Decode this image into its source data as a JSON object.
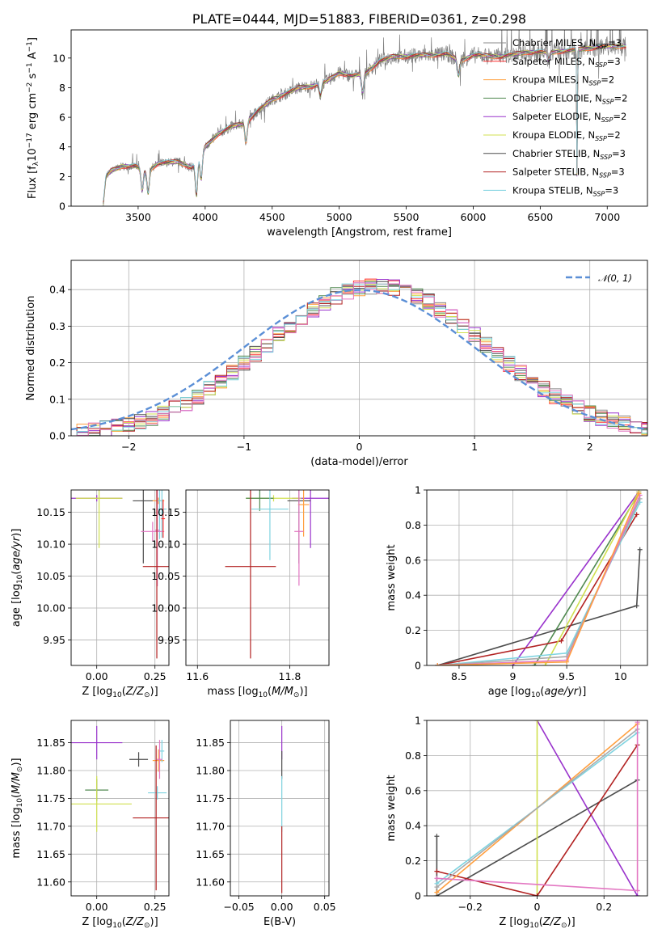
{
  "chart_data": [
    {
      "id": "spectrum",
      "type": "line",
      "title": "PLATE=0444, MJD=51883, FIBERID=0361, z=0.298",
      "xlabel": "wavelength [Angstrom, rest frame]",
      "ylabel": "Flux [f_λ10^-17 erg cm^-2 s^-1 A^-1]",
      "xlim": [
        3000,
        7300
      ],
      "ylim": [
        0,
        11.9
      ],
      "xticks": [
        3500,
        4000,
        4500,
        5000,
        5500,
        6000,
        6500,
        7000
      ],
      "yticks": [
        0,
        2,
        4,
        6,
        8,
        10
      ],
      "grid": false,
      "legend_position": "top-right",
      "data_start": 3240,
      "data_end": 7140,
      "continuum": [
        {
          "x": 3240,
          "y": 0.2
        },
        {
          "x": 3260,
          "y": 2.0
        },
        {
          "x": 3300,
          "y": 2.4
        },
        {
          "x": 3380,
          "y": 2.7
        },
        {
          "x": 3480,
          "y": 2.7
        },
        {
          "x": 3560,
          "y": 2.3
        },
        {
          "x": 3650,
          "y": 2.9
        },
        {
          "x": 3800,
          "y": 3.0
        },
        {
          "x": 3900,
          "y": 2.6
        },
        {
          "x": 4000,
          "y": 4.0
        },
        {
          "x": 4100,
          "y": 4.9
        },
        {
          "x": 4200,
          "y": 5.4
        },
        {
          "x": 4300,
          "y": 5.6
        },
        {
          "x": 4400,
          "y": 6.5
        },
        {
          "x": 4500,
          "y": 7.2
        },
        {
          "x": 4600,
          "y": 7.6
        },
        {
          "x": 4700,
          "y": 8.0
        },
        {
          "x": 4800,
          "y": 8.1
        },
        {
          "x": 4900,
          "y": 8.4
        },
        {
          "x": 5000,
          "y": 9.0
        },
        {
          "x": 5100,
          "y": 8.8
        },
        {
          "x": 5200,
          "y": 9.0
        },
        {
          "x": 5300,
          "y": 9.8
        },
        {
          "x": 5400,
          "y": 10.1
        },
        {
          "x": 5500,
          "y": 10.1
        },
        {
          "x": 5600,
          "y": 10.2
        },
        {
          "x": 5700,
          "y": 10.2
        },
        {
          "x": 5800,
          "y": 10.3
        },
        {
          "x": 5900,
          "y": 9.8
        },
        {
          "x": 6000,
          "y": 10.2
        },
        {
          "x": 6200,
          "y": 10.1
        },
        {
          "x": 6400,
          "y": 10.4
        },
        {
          "x": 6600,
          "y": 10.4
        },
        {
          "x": 6800,
          "y": 10.6
        },
        {
          "x": 7000,
          "y": 10.8
        },
        {
          "x": 7140,
          "y": 10.8
        }
      ],
      "absorption": [
        {
          "x": 3530,
          "depth": 1.4
        },
        {
          "x": 3575,
          "depth": 1.5
        },
        {
          "x": 3935,
          "depth": 2.4
        },
        {
          "x": 3970,
          "depth": 1.8
        },
        {
          "x": 4305,
          "depth": 1.3
        },
        {
          "x": 4860,
          "depth": 0.8
        },
        {
          "x": 5175,
          "depth": 1.3
        },
        {
          "x": 5890,
          "depth": 1.0
        },
        {
          "x": 6563,
          "depth": 0.6
        },
        {
          "x": 6775,
          "depth": 9.0
        }
      ],
      "series": [
        {
          "name": "Chabrier MILES, N_SSP=3",
          "color": "#888888"
        },
        {
          "name": "Salpeter MILES, N_SSP=3",
          "color": "#ff3030"
        },
        {
          "name": "Kroupa MILES, N_SSP=2",
          "color": "#ffa040"
        },
        {
          "name": "Chabrier ELODIE, N_SSP=2",
          "color": "#508a50"
        },
        {
          "name": "Salpeter ELODIE, N_SSP=2",
          "color": "#9932cc"
        },
        {
          "name": "Kroupa ELODIE, N_SSP=2",
          "color": "#d0e050"
        },
        {
          "name": "Chabrier STELIB, N_SSP=3",
          "color": "#4d4d4d"
        },
        {
          "name": "Salpeter STELIB, N_SSP=3",
          "color": "#b22222"
        },
        {
          "name": "Kroupa STELIB, N_SSP=3",
          "color": "#7fd3e0"
        }
      ]
    },
    {
      "id": "residuals",
      "type": "bar",
      "xlabel": "(data-model)/error",
      "ylabel": "Normed distribution",
      "xlim": [
        -2.5,
        2.5
      ],
      "ylim": [
        0,
        0.48
      ],
      "xticks": [
        -2,
        -1,
        0,
        1,
        2
      ],
      "yticks": [
        0.0,
        0.1,
        0.2,
        0.3,
        0.4
      ],
      "grid": true,
      "legend_position": "top-right",
      "bin_width": 0.1,
      "reference_curve": {
        "name": "N(0,1)",
        "mean": 0,
        "sigma": 1,
        "color": "#5b8fd6"
      },
      "series_colors": [
        "#888888",
        "#ff3030",
        "#ffa040",
        "#508a50",
        "#9932cc",
        "#d0e050",
        "#4d4d4d",
        "#b22222",
        "#7fd3e0",
        "#e377c2"
      ]
    },
    {
      "id": "age-vs-Z",
      "type": "scatter",
      "xlabel": "Z [log10(Z/Z⊙)]",
      "ylabel": "age [log10(age/yr)]",
      "xlim": [
        -0.11,
        0.31
      ],
      "ylim": [
        9.91,
        10.185
      ],
      "xticks": [
        0.0,
        0.25
      ],
      "xtick_labels": [
        "0.00",
        "0.25"
      ],
      "yticks": [
        9.95,
        10.0,
        10.05,
        10.1,
        10.15
      ],
      "yticks_labels": [
        "9.95",
        "10.00",
        "10.05",
        "10.10",
        "10.15"
      ],
      "grid": true,
      "points": [
        {
          "x": 0.0,
          "y": 10.172,
          "xerr": 0.11,
          "yerr": 0.005,
          "color": "#9932cc"
        },
        {
          "x": 0.01,
          "y": 10.172,
          "xerr": 0.1,
          "yerr": 0.078,
          "color": "#d0e050"
        },
        {
          "x": 0.2,
          "y": 10.168,
          "xerr": 0.045,
          "yerr": 0.098,
          "color": "#4d4d4d"
        },
        {
          "x": 0.265,
          "y": 10.168,
          "xerr": 0.025,
          "yerr": 0.005,
          "color": "#ffa040"
        },
        {
          "x": 0.27,
          "y": 10.168,
          "xerr": 0.012,
          "yerr": 0.06,
          "color": "#7fd3e0"
        },
        {
          "x": 0.28,
          "y": 10.155,
          "xerr": 0.02,
          "yerr": 0.045,
          "color": "#7fd3e0"
        },
        {
          "x": 0.24,
          "y": 10.12,
          "xerr": 0.05,
          "yerr": 0.015,
          "color": "#e377c2"
        },
        {
          "x": 0.26,
          "y": 10.122,
          "xerr": 0.01,
          "yerr": 0.088,
          "color": "#e377c2"
        },
        {
          "x": 0.285,
          "y": 10.14,
          "xerr": 0.008,
          "yerr": 0.03,
          "color": "#ff3030"
        },
        {
          "x": 0.258,
          "y": 10.065,
          "xerr": 0.06,
          "yerr": 0.144,
          "color": "#b22222"
        }
      ]
    },
    {
      "id": "age-vs-mass",
      "type": "scatter",
      "xlabel": "mass [log10(M/M⊙)]",
      "ylabel": "",
      "xlim": [
        11.575,
        11.885
      ],
      "ylim": [
        9.91,
        10.185
      ],
      "xticks": [
        11.6,
        11.8
      ],
      "xtick_labels": [
        "11.6",
        "11.8"
      ],
      "yticks": [
        9.95,
        10.0,
        10.05,
        10.1,
        10.15
      ],
      "yticks_labels": [
        "9.95",
        "10.00",
        "10.05",
        "10.10",
        "10.15"
      ],
      "grid": true,
      "points": [
        {
          "x": 11.845,
          "y": 10.172,
          "xerr": 0.04,
          "yerr": 0.078,
          "color": "#9932cc"
        },
        {
          "x": 11.765,
          "y": 10.172,
          "xerr": 0.06,
          "yerr": 0.005,
          "color": "#d0e050"
        },
        {
          "x": 11.735,
          "y": 10.172,
          "xerr": 0.03,
          "yerr": 0.02,
          "color": "#508a50"
        },
        {
          "x": 11.82,
          "y": 10.168,
          "xerr": 0.025,
          "yerr": 0.098,
          "color": "#4d4d4d"
        },
        {
          "x": 11.83,
          "y": 10.162,
          "xerr": 0.012,
          "yerr": 0.05,
          "color": "#ffa040"
        },
        {
          "x": 11.757,
          "y": 10.155,
          "xerr": 0.04,
          "yerr": 0.08,
          "color": "#7fd3e0"
        },
        {
          "x": 11.82,
          "y": 10.12,
          "xerr": 0.01,
          "yerr": 0.085,
          "color": "#e377c2"
        },
        {
          "x": 11.715,
          "y": 10.065,
          "xerr": 0.055,
          "yerr": 0.144,
          "color": "#b22222"
        }
      ]
    },
    {
      "id": "mass-weight-vs-age",
      "type": "line",
      "xlabel": "age  [log10(age/yr)]",
      "ylabel": "mass weight",
      "xlim": [
        8.2,
        10.25
      ],
      "ylim": [
        0,
        1.0
      ],
      "xticks": [
        8.5,
        9.0,
        9.5,
        10.0
      ],
      "yticks": [
        0.0,
        0.2,
        0.4,
        0.6,
        0.8,
        1.0
      ],
      "grid": true,
      "series": [
        {
          "color": "#4d4d4d",
          "points": [
            [
              8.3,
              0.0
            ],
            [
              10.15,
              0.34
            ],
            [
              10.18,
              0.66
            ]
          ]
        },
        {
          "color": "#9932cc",
          "points": [
            [
              9.0,
              0.0
            ],
            [
              10.17,
              0.99
            ]
          ]
        },
        {
          "color": "#508a50",
          "points": [
            [
              9.2,
              0.0
            ],
            [
              10.17,
              0.98
            ]
          ]
        },
        {
          "color": "#b22222",
          "points": [
            [
              8.3,
              0.0
            ],
            [
              9.45,
              0.14
            ],
            [
              10.15,
              0.86
            ]
          ]
        },
        {
          "color": "#d0e050",
          "points": [
            [
              9.3,
              0.0
            ],
            [
              10.17,
              0.99
            ]
          ]
        },
        {
          "color": "#7fd3e0",
          "points": [
            [
              8.3,
              0.0
            ],
            [
              9.5,
              0.07
            ],
            [
              10.18,
              0.93
            ]
          ]
        },
        {
          "color": "#aaaaaa",
          "points": [
            [
              8.3,
              0.0
            ],
            [
              9.5,
              0.05
            ],
            [
              10.18,
              0.95
            ]
          ]
        },
        {
          "color": "#e377c2",
          "points": [
            [
              8.3,
              0.0
            ],
            [
              9.5,
              0.03
            ],
            [
              10.18,
              0.97
            ]
          ]
        },
        {
          "color": "#ffa040",
          "points": [
            [
              8.3,
              0.0
            ],
            [
              9.5,
              0.02
            ],
            [
              10.17,
              0.98
            ]
          ]
        }
      ]
    },
    {
      "id": "mass-vs-Z",
      "type": "scatter",
      "xlabel": "Z [log10(Z/Z⊙)]",
      "ylabel": "mass [log10(M/M⊙)]",
      "xlim": [
        -0.11,
        0.31
      ],
      "ylim": [
        11.575,
        11.89
      ],
      "xticks": [
        0.0,
        0.25
      ],
      "xtick_labels": [
        "0.00",
        "0.25"
      ],
      "yticks": [
        11.6,
        11.65,
        11.7,
        11.75,
        11.8,
        11.85
      ],
      "yticks_labels": [
        "11.60",
        "11.65",
        "11.70",
        "11.75",
        "11.80",
        "11.85"
      ],
      "grid": true,
      "points": [
        {
          "x": 0.0,
          "y": 11.85,
          "xerr": 0.11,
          "yerr": 0.03,
          "color": "#9932cc"
        },
        {
          "x": 0.0,
          "y": 11.765,
          "xerr": 0.05,
          "yerr": 0.02,
          "color": "#508a50"
        },
        {
          "x": 0.0,
          "y": 11.74,
          "xerr": 0.15,
          "yerr": 0.05,
          "color": "#d0e050"
        },
        {
          "x": 0.18,
          "y": 11.82,
          "xerr": 0.04,
          "yerr": 0.013,
          "color": "#4d4d4d"
        },
        {
          "x": 0.265,
          "y": 11.818,
          "xerr": 0.025,
          "yerr": 0.02,
          "color": "#ffa040"
        },
        {
          "x": 0.28,
          "y": 11.835,
          "xerr": 0.01,
          "yerr": 0.02,
          "color": "#7fd3e0"
        },
        {
          "x": 0.26,
          "y": 11.76,
          "xerr": 0.04,
          "yerr": 0.012,
          "color": "#7fd3e0"
        },
        {
          "x": 0.27,
          "y": 11.82,
          "xerr": 0.012,
          "yerr": 0.035,
          "color": "#e377c2"
        },
        {
          "x": 0.255,
          "y": 11.715,
          "xerr": 0.1,
          "yerr": 0.13,
          "color": "#b22222"
        }
      ]
    },
    {
      "id": "mass-vs-EBV",
      "type": "scatter",
      "xlabel": "E(B-V)",
      "ylabel": "",
      "xlim": [
        -0.06,
        0.055
      ],
      "ylim": [
        11.575,
        11.89
      ],
      "xticks": [
        -0.05,
        0.0,
        0.05
      ],
      "xtick_labels": [
        "−0.05",
        "0.00",
        "0.05"
      ],
      "yticks": [
        11.6,
        11.65,
        11.7,
        11.75,
        11.8,
        11.85
      ],
      "yticks_labels": [
        "11.60",
        "11.65",
        "11.70",
        "11.75",
        "11.80",
        "11.85"
      ],
      "grid": true,
      "points": [
        {
          "x": 0.0,
          "y": 11.85,
          "xerr": 0.0,
          "yerr": 0.03,
          "color": "#9932cc"
        },
        {
          "x": 0.0,
          "y": 11.81,
          "xerr": 0.0,
          "yerr": 0.025,
          "color": "#4d4d4d"
        },
        {
          "x": 0.0,
          "y": 11.74,
          "xerr": 0.0,
          "yerr": 0.05,
          "color": "#7fd3e0"
        },
        {
          "x": 0.0,
          "y": 11.64,
          "xerr": 0.0,
          "yerr": 0.06,
          "color": "#b22222"
        }
      ]
    },
    {
      "id": "mass-weight-vs-Z",
      "type": "line",
      "xlabel": "Z [log10(Z/Z⊙)]",
      "ylabel": "mass weight",
      "xlim": [
        -0.33,
        0.33
      ],
      "ylim": [
        0,
        1.0
      ],
      "xticks": [
        -0.2,
        0.0,
        0.2
      ],
      "yticks": [
        0.0,
        0.2,
        0.4,
        0.6,
        0.8,
        1.0
      ],
      "grid": true,
      "series": [
        {
          "color": "#4d4d4d",
          "points": [
            [
              -0.3,
              0.34
            ],
            [
              -0.3,
              0.0
            ],
            [
              0.3,
              0.66
            ]
          ]
        },
        {
          "color": "#9932cc",
          "points": [
            [
              0.0,
              1.0
            ],
            [
              0.3,
              0.0
            ]
          ]
        },
        {
          "color": "#d0e050",
          "points": [
            [
              0.0,
              0.0
            ],
            [
              0.0,
              1.0
            ]
          ]
        },
        {
          "color": "#b22222",
          "points": [
            [
              -0.3,
              0.14
            ],
            [
              0.0,
              0.0
            ],
            [
              0.3,
              0.86
            ]
          ]
        },
        {
          "color": "#ffa040",
          "points": [
            [
              -0.3,
              0.02
            ],
            [
              0.3,
              0.98
            ]
          ]
        },
        {
          "color": "#7fd3e0",
          "points": [
            [
              -0.3,
              0.07
            ],
            [
              0.3,
              0.93
            ]
          ]
        },
        {
          "color": "#aaaaaa",
          "points": [
            [
              -0.3,
              0.05
            ],
            [
              0.3,
              0.95
            ]
          ]
        },
        {
          "color": "#e377c2",
          "points": [
            [
              -0.3,
              0.1
            ],
            [
              0.3,
              0.03
            ]
          ]
        },
        {
          "color": "#e377c2",
          "points": [
            [
              0.3,
              0.03
            ],
            [
              0.3,
              0.99
            ]
          ]
        }
      ]
    }
  ]
}
